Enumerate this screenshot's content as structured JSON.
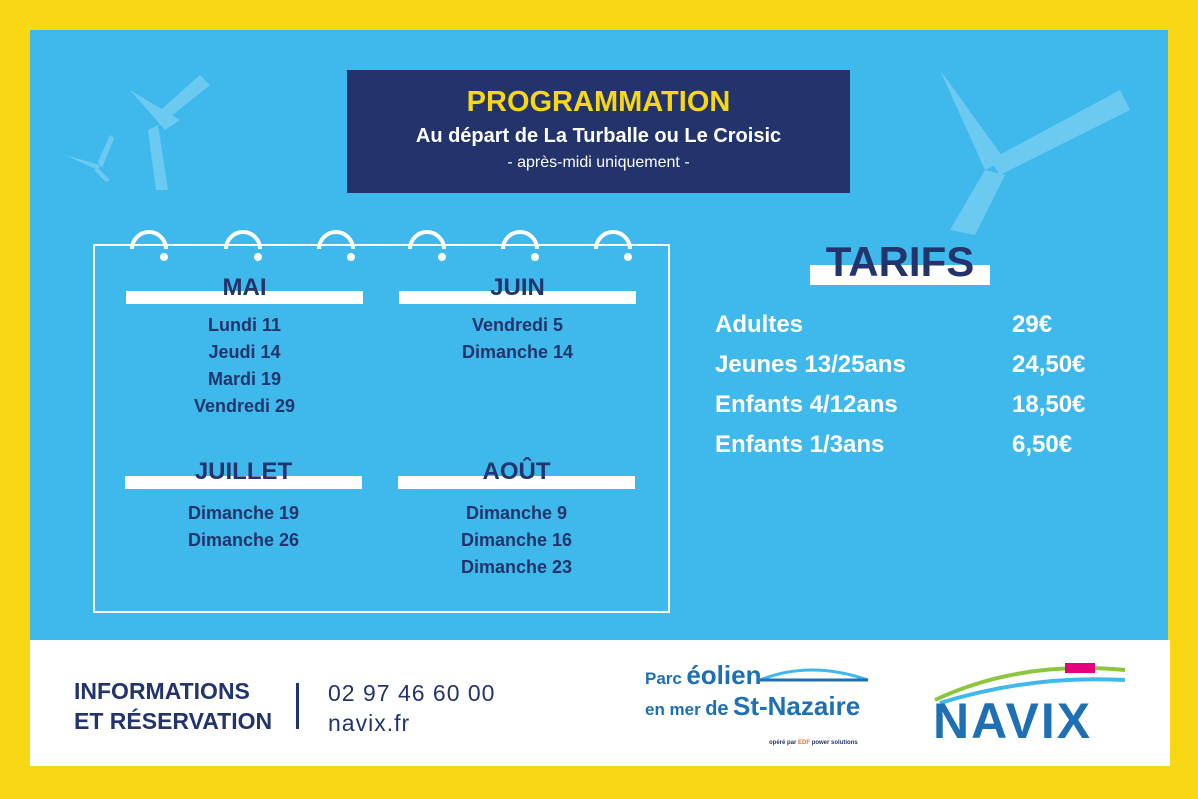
{
  "header": {
    "title": "PROGRAMMATION",
    "subtitle": "Au départ de La Turballe ou Le Croisic",
    "note": "-  après-midi uniquement -"
  },
  "calendar": [
    {
      "month": "MAI",
      "dates": [
        "Lundi 11",
        "Jeudi 14",
        "Mardi 19",
        "Vendredi 29"
      ]
    },
    {
      "month": "JUIN",
      "dates": [
        "Vendredi 5",
        "Dimanche 14"
      ]
    },
    {
      "month": "JUILLET",
      "dates": [
        "Dimanche 19",
        "Dimanche 26"
      ]
    },
    {
      "month": "AOÛT",
      "dates": [
        "Dimanche 9",
        "Dimanche 16",
        "Dimanche 23"
      ]
    }
  ],
  "tarifs": {
    "title": "TARIFS",
    "rows": [
      [
        "Adultes",
        "29€"
      ],
      [
        "Jeunes 13/25ans",
        "24,50€"
      ],
      [
        "Enfants 4/12ans",
        "18,50€"
      ],
      [
        "Enfants 1/3ans",
        "6,50€"
      ]
    ]
  },
  "footer": {
    "info": [
      "INFORMATIONS",
      "ET RÉSERVATION"
    ],
    "phone": "02 97 46 60 00",
    "website": "navix.fr"
  },
  "logos": {
    "parc": [
      "Parc",
      "éolien",
      "en mer",
      "de",
      "St-Nazaire"
    ],
    "operator": [
      "opéré par",
      "EDF",
      "power solutions"
    ],
    "navix": "NAVIX"
  }
}
